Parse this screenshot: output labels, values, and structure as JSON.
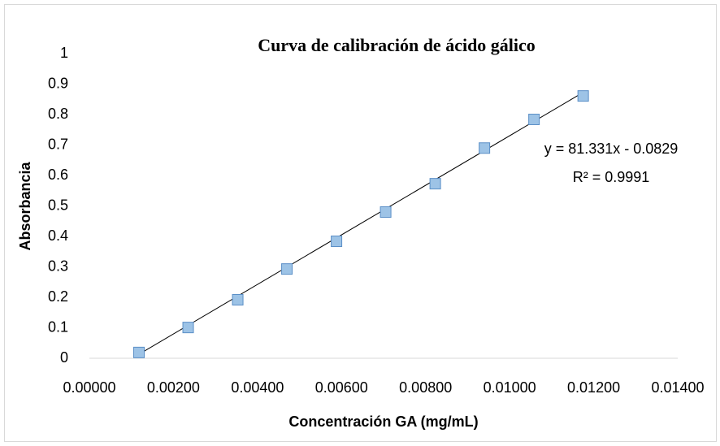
{
  "chart_data": {
    "type": "scatter",
    "title": "Curva de calibración de ácido gálico",
    "x_label": "Concentración GA (mg/mL)",
    "y_label": "Absorbancia",
    "series": [
      {
        "name": "Absorbancia",
        "color": "#9dc3e6",
        "edge_color": "#5b8fc7",
        "x": [
          0.00118,
          0.00235,
          0.00353,
          0.0047,
          0.00588,
          0.00705,
          0.00823,
          0.0094,
          0.01058,
          0.01175
        ],
        "values": [
          0.019,
          0.101,
          0.192,
          0.293,
          0.384,
          0.48,
          0.573,
          0.69,
          0.784,
          0.861
        ]
      }
    ],
    "trendline": {
      "slope": 81.331,
      "intercept": -0.0829,
      "color": "#000000",
      "equation": "y = 81.331x - 0.0829",
      "r2": "R² = 0.9991"
    },
    "xlim": [
      0,
      0.014
    ],
    "xticks": [
      {
        "value": 0,
        "label": "0.00000"
      },
      {
        "value": 0.002,
        "label": "0.00200"
      },
      {
        "value": 0.004,
        "label": "0.00400"
      },
      {
        "value": 0.006,
        "label": "0.00600"
      },
      {
        "value": 0.008,
        "label": "0.00800"
      },
      {
        "value": 0.01,
        "label": "0.01000"
      },
      {
        "value": 0.012,
        "label": "0.01200"
      },
      {
        "value": 0.014,
        "label": "0.01400"
      }
    ],
    "ylim": [
      0,
      1
    ],
    "yticks": [
      0,
      0.1,
      0.2,
      0.3,
      0.4,
      0.5,
      0.6,
      0.7,
      0.8,
      0.9,
      1
    ],
    "grid": false
  }
}
